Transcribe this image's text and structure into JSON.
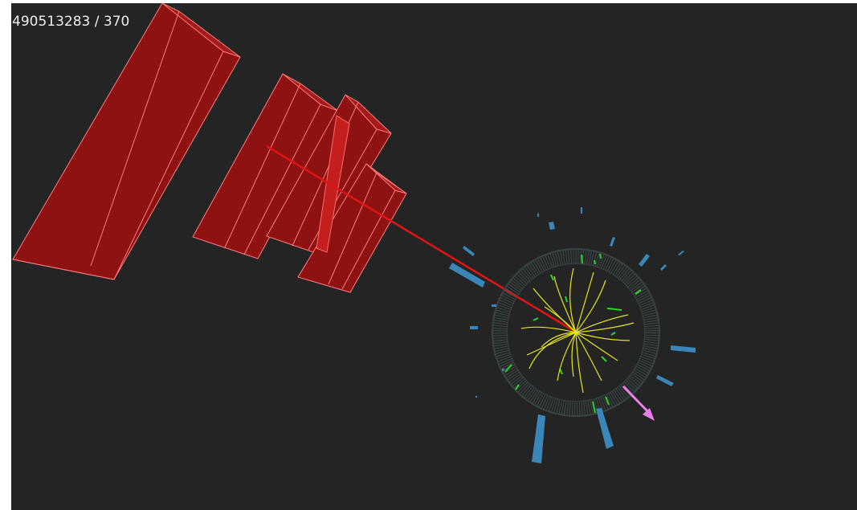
{
  "event": {
    "label": "490513283 / 370"
  },
  "colors": {
    "background": "#242424",
    "muon_chamber": "#8c1010",
    "muon_track": "#e01414",
    "tracker_tracks": "#e6e61a",
    "tracker_hits": "#2bd42b",
    "calorimeter_towers": "#3a86b8",
    "missing_energy": "#e87ee8",
    "detector_ring": "#3d4a4a"
  },
  "icons": {
    "missing_energy": "arrow-icon"
  }
}
